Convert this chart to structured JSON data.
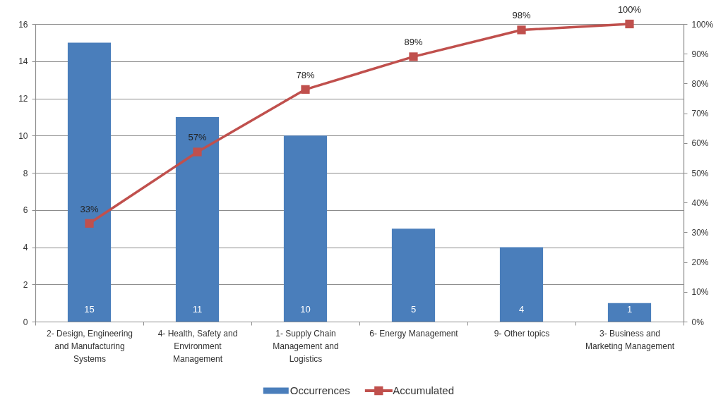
{
  "chart_data": {
    "type": "bar",
    "categories": [
      "2- Design, Engineering and Manufacturing Systems",
      "4- Health, Safety and Environment Management",
      "1- Supply Chain Management and Logistics",
      "6- Energy Management",
      "9- Other topics",
      "3- Business and Marketing Management"
    ],
    "series": [
      {
        "name": "Occurrences",
        "color": "#4a7ebb",
        "values": [
          15,
          11,
          10,
          5,
          4,
          1
        ],
        "data_labels": true
      },
      {
        "name": "Accumulated",
        "type": "line",
        "axis": "y2",
        "color": "#c0504d",
        "values": [
          33,
          57,
          78,
          89,
          98,
          100
        ],
        "value_labels": [
          "33%",
          "57%",
          "78%",
          "89%",
          "98%",
          "100%"
        ],
        "marker": "square",
        "line_style": "solid"
      }
    ],
    "ylim": [
      0,
      16
    ],
    "yticks": [
      0,
      2,
      4,
      6,
      8,
      10,
      12,
      14,
      16
    ],
    "y2lim": [
      0,
      100
    ],
    "y2ticks": [
      {
        "value": 0,
        "label": "0%"
      },
      {
        "value": 10,
        "label": "10%"
      },
      {
        "value": 20,
        "label": "20%"
      },
      {
        "value": 30,
        "label": "30%"
      },
      {
        "value": 40,
        "label": "40%"
      },
      {
        "value": 50,
        "label": "50%"
      },
      {
        "value": 60,
        "label": "60%"
      },
      {
        "value": 70,
        "label": "70%"
      },
      {
        "value": 80,
        "label": "80%"
      },
      {
        "value": 90,
        "label": "90%"
      },
      {
        "value": 100,
        "label": "100%"
      }
    ],
    "grid": "y",
    "legend": "bottom"
  }
}
